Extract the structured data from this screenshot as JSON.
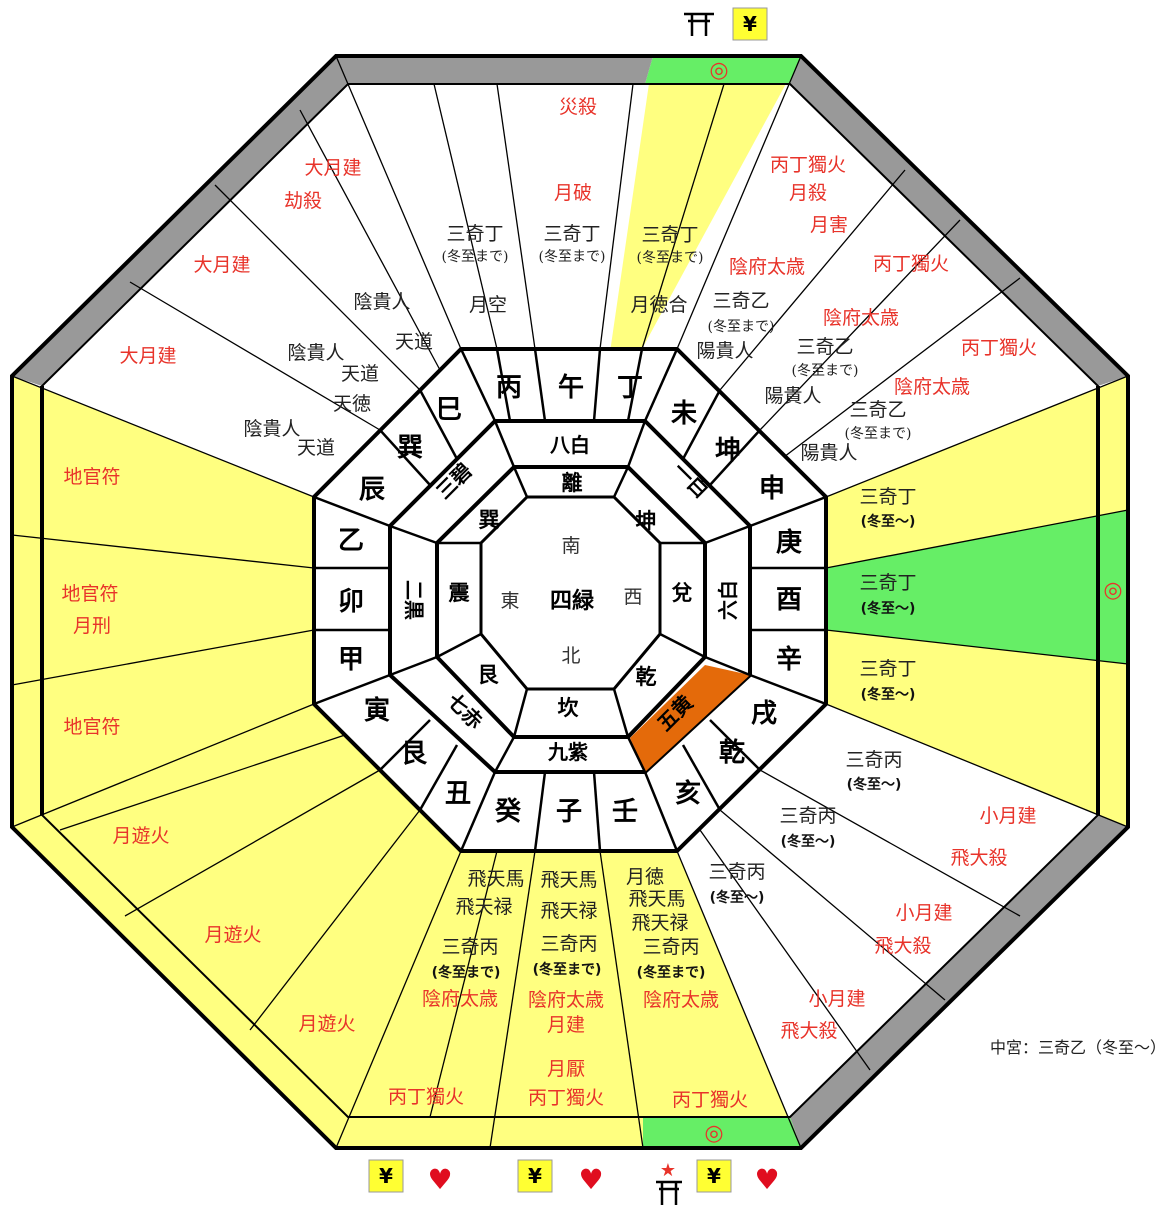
{
  "center": {
    "label": "四緑",
    "north": "北",
    "south": "南",
    "east": "東",
    "west": "西"
  },
  "trigrams": {
    "south": "離",
    "southwest": "坤",
    "west": "兌",
    "northwest": "乾",
    "north": "坎",
    "northeast": "艮",
    "east": "震",
    "southeast": "巽"
  },
  "stars": {
    "south": "八白",
    "southwest": "一白",
    "west": "六白",
    "northwest": "五黄",
    "north": "九紫",
    "northeast": "七赤",
    "east": "二黒",
    "southeast": "三碧"
  },
  "mountains": [
    "丙",
    "午",
    "丁",
    "未",
    "坤",
    "申",
    "庚",
    "酉",
    "辛",
    "戌",
    "乾",
    "亥",
    "壬",
    "子",
    "癸",
    "丑",
    "艮",
    "寅",
    "甲",
    "卯",
    "乙",
    "辰",
    "巽",
    "巳"
  ],
  "annotation": "中宮：三奇乙（冬至〜）",
  "markers": {
    "double_circle": "◎",
    "yen": "¥",
    "heart": "♥",
    "shrine": "⛩",
    "star": "★"
  },
  "colors": {
    "yellow": "#ffff80",
    "green": "#66ee66",
    "orange": "#e46a0a",
    "grey": "#999999"
  },
  "labels": {
    "n_saisatsu": "災殺",
    "n_geppa": "月破",
    "n_sankitei1": "三奇丁",
    "n_toji1": "(冬至まで)",
    "n_sankitei2": "三奇丁",
    "n_toji2": "(冬至まで)",
    "n_sankitei3": "三奇丁",
    "n_toji3": "(冬至まで)",
    "n_getsukuu": "月空",
    "n_gettokugo": "月徳合",
    "nw_daigekken1": "大月建",
    "nw_kousatsu": "劫殺",
    "nw_daigekken2": "大月建",
    "nw_daigekken3": "大月建",
    "nw_inkijin1": "陰貴人",
    "nw_tendou1": "天道",
    "nw_inkijin2": "陰貴人",
    "nw_tendou2": "天道",
    "nw_tentoku": "天徳",
    "nw_inkijin3": "陰貴人",
    "nw_tendou3": "天道",
    "ne_heitei1": "丙丁獨火",
    "ne_gessatsu": "月殺",
    "ne_gakai": "月害",
    "ne_infu1": "陰府太歳",
    "ne_heitei2": "丙丁獨火",
    "ne_sankiotsu1": "三奇乙",
    "ne_toji1": "(冬至まで)",
    "ne_youkijin1": "陽貴人",
    "ne_infu2": "陰府太歳",
    "ne_sankiotsu2": "三奇乙",
    "ne_toji2": "(冬至まで)",
    "ne_youkijin2": "陽貴人",
    "ne_heitei3": "丙丁獨火",
    "ne_infu3": "陰府太歳",
    "ne_sankiotsu3": "三奇乙",
    "ne_toji3": "(冬至まで)",
    "ne_youkijin3": "陽貴人",
    "w_chikanfu1": "地官符",
    "w_chikanfu2": "地官符",
    "w_gekkei": "月刑",
    "w_chikanfu3": "地官符",
    "e_sankitei1": "三奇丁",
    "e_toji1": "(冬至〜)",
    "e_sankitei2": "三奇丁",
    "e_toji2": "(冬至〜)",
    "e_sankitei3": "三奇丁",
    "e_toji3": "(冬至〜)",
    "sw_getsuyuka1": "月遊火",
    "sw_getsuyuka2": "月遊火",
    "sw_getsuyuka3": "月遊火",
    "se_sankihei1": "三奇丙",
    "se_toji1": "(冬至〜)",
    "se_shougekken1": "小月建",
    "se_hidaisatsu1": "飛大殺",
    "se_sankihei2": "三奇丙",
    "se_toji2": "(冬至〜)",
    "se_shougekken2": "小月建",
    "se_hidaisatsu2": "飛大殺",
    "se_sankihei3": "三奇丙",
    "se_toji3": "(冬至〜)",
    "se_shougekken3": "小月建",
    "se_hidaisatsu3": "飛大殺",
    "s_hitenba1": "飛天馬",
    "s_hitenroku1": "飛天禄",
    "s_sankihei1": "三奇丙",
    "s_toji1": "(冬至まで)",
    "s_infu1": "陰府太歳",
    "s_heitei1": "丙丁獨火",
    "s_hitenba2": "飛天馬",
    "s_hitenroku2": "飛天禄",
    "s_sankihei2": "三奇丙",
    "s_toji2": "(冬至まで)",
    "s_infu2": "陰府太歳",
    "s_gekken": "月建",
    "s_getsuen": "月厭",
    "s_heitei2": "丙丁獨火",
    "s_gettoku": "月徳",
    "s_hitenba3": "飛天馬",
    "s_hitenroku3": "飛天禄",
    "s_sankihei3": "三奇丙",
    "s_toji3": "(冬至まで)",
    "s_infu3": "陰府太歳",
    "s_heitei3": "丙丁獨火"
  }
}
